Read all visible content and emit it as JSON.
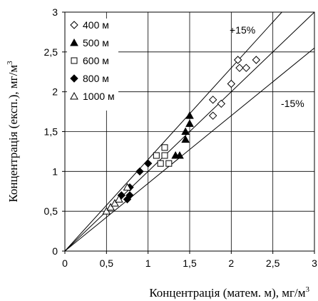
{
  "chart_data": {
    "type": "scatter",
    "xlabel": "Концентрація (матем. м), мг/м",
    "xlabel_sup": "3",
    "ylabel": "Концентрація (експ.), мг/м",
    "ylabel_sup": "3",
    "xlim": [
      0,
      3
    ],
    "ylim": [
      0,
      3
    ],
    "x_ticks": [
      0,
      0.5,
      1,
      1.5,
      2,
      2.5,
      3
    ],
    "y_ticks": [
      0,
      0.5,
      1,
      1.5,
      2,
      2.5,
      3
    ],
    "x_tick_labels": [
      "0",
      "0,5",
      "1",
      "1,5",
      "2",
      "2,5",
      "3"
    ],
    "y_tick_labels": [
      "0",
      "0,5",
      "1",
      "1,5",
      "2",
      "2,5",
      "3"
    ],
    "grid": true,
    "legend_position": "top-left",
    "reference_lines": [
      {
        "label": "+15%",
        "slope": 1.15
      },
      {
        "label": "",
        "slope": 1.0
      },
      {
        "label": "-15%",
        "slope": 0.85
      }
    ],
    "series": [
      {
        "name": "400 м",
        "marker": "diamond-open",
        "points": [
          [
            1.78,
            1.9
          ],
          [
            1.78,
            1.7
          ],
          [
            1.88,
            1.85
          ],
          [
            2.0,
            2.1
          ],
          [
            2.08,
            2.4
          ],
          [
            2.1,
            2.3
          ],
          [
            2.18,
            2.3
          ],
          [
            2.3,
            2.4
          ]
        ]
      },
      {
        "name": "500 м",
        "marker": "triangle-filled",
        "points": [
          [
            1.33,
            1.2
          ],
          [
            1.38,
            1.2
          ],
          [
            1.45,
            1.4
          ],
          [
            1.45,
            1.5
          ],
          [
            1.5,
            1.6
          ],
          [
            1.5,
            1.7
          ]
        ]
      },
      {
        "name": "600 м",
        "marker": "square-open",
        "points": [
          [
            1.1,
            1.2
          ],
          [
            1.15,
            1.1
          ],
          [
            1.2,
            1.2
          ],
          [
            1.2,
            1.3
          ],
          [
            1.25,
            1.1
          ]
        ]
      },
      {
        "name": "800 м",
        "marker": "diamond-filled",
        "points": [
          [
            0.68,
            0.7
          ],
          [
            0.75,
            0.65
          ],
          [
            0.78,
            0.7
          ],
          [
            0.78,
            0.8
          ],
          [
            0.9,
            1.0
          ],
          [
            1.0,
            1.1
          ]
        ]
      },
      {
        "name": "1000 м",
        "marker": "triangle-open",
        "points": [
          [
            0.5,
            0.5
          ],
          [
            0.55,
            0.55
          ],
          [
            0.6,
            0.6
          ],
          [
            0.65,
            0.65
          ],
          [
            0.75,
            0.8
          ]
        ]
      }
    ]
  }
}
